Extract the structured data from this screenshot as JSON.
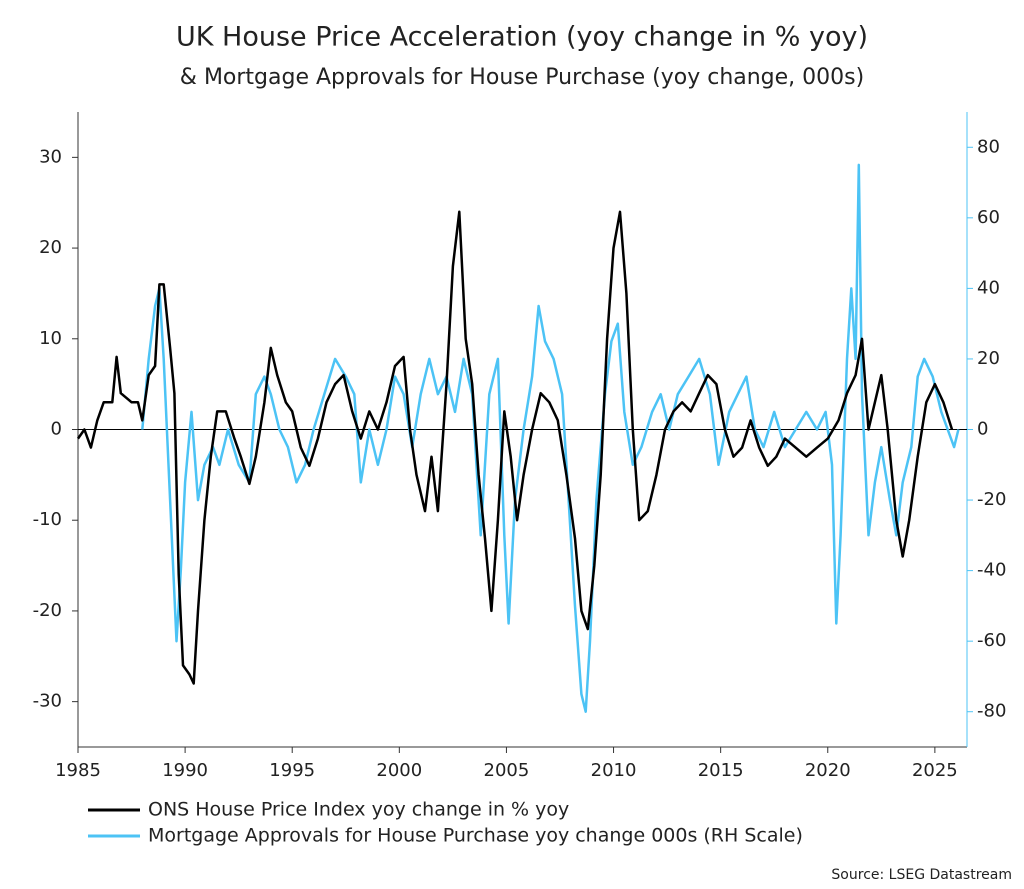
{
  "chart_data": {
    "type": "line",
    "title": "UK House Price Acceleration (yoy change in % yoy)",
    "subtitle": "& Mortgage Approvals for House Purchase (yoy change, 000s)",
    "source": "Source: LSEG Datastream",
    "xlim": [
      1985,
      2026.5
    ],
    "xticks": [
      1985,
      1990,
      1995,
      2000,
      2005,
      2010,
      2015,
      2020,
      2025
    ],
    "ylim": [
      -35,
      35
    ],
    "yticks": [
      -30,
      -20,
      -10,
      0,
      10,
      20,
      30
    ],
    "y2lim": [
      -90,
      90
    ],
    "y2ticks": [
      -80,
      -60,
      -40,
      -20,
      0,
      20,
      40,
      60,
      80
    ],
    "y2color": "#4cc3f5",
    "series": [
      {
        "name": "ONS House Price Index yoy change in % yoy",
        "color": "#000000",
        "axis": "y",
        "x": [
          1985.0,
          1985.3,
          1985.6,
          1985.9,
          1986.2,
          1986.6,
          1986.8,
          1987.0,
          1987.5,
          1987.8,
          1988.0,
          1988.3,
          1988.6,
          1988.8,
          1989.0,
          1989.3,
          1989.5,
          1989.7,
          1989.9,
          1990.2,
          1990.4,
          1990.6,
          1990.9,
          1991.2,
          1991.5,
          1991.9,
          1992.3,
          1992.6,
          1993.0,
          1993.3,
          1993.7,
          1994.0,
          1994.3,
          1994.7,
          1995.0,
          1995.4,
          1995.8,
          1996.2,
          1996.6,
          1997.0,
          1997.4,
          1997.8,
          1998.2,
          1998.6,
          1999.0,
          1999.4,
          1999.8,
          2000.2,
          2000.5,
          2000.8,
          2001.2,
          2001.5,
          2001.8,
          2002.2,
          2002.5,
          2002.8,
          2003.1,
          2003.4,
          2003.7,
          2004.0,
          2004.3,
          2004.6,
          2004.9,
          2005.2,
          2005.5,
          2005.8,
          2006.2,
          2006.6,
          2007.0,
          2007.4,
          2007.8,
          2008.2,
          2008.5,
          2008.8,
          2009.1,
          2009.4,
          2009.7,
          2010.0,
          2010.3,
          2010.6,
          2010.9,
          2011.2,
          2011.6,
          2012.0,
          2012.4,
          2012.8,
          2013.2,
          2013.6,
          2014.0,
          2014.4,
          2014.8,
          2015.2,
          2015.6,
          2016.0,
          2016.4,
          2016.8,
          2017.2,
          2017.6,
          2018.0,
          2018.5,
          2019.0,
          2019.5,
          2020.0,
          2020.5,
          2020.9,
          2021.3,
          2021.6,
          2021.9,
          2022.2,
          2022.5,
          2022.8,
          2023.2,
          2023.5,
          2023.8,
          2024.2,
          2024.6,
          2025.0,
          2025.4,
          2025.8
        ],
        "values": [
          -1,
          0,
          -2,
          1,
          3,
          3,
          8,
          4,
          3,
          3,
          1,
          6,
          7,
          16,
          16,
          9,
          4,
          -16,
          -26,
          -27,
          -28,
          -20,
          -10,
          -3,
          2,
          2,
          -1,
          -3,
          -6,
          -3,
          3,
          9,
          6,
          3,
          2,
          -2,
          -4,
          -1,
          3,
          5,
          6,
          2,
          -1,
          2,
          0,
          3,
          7,
          8,
          0,
          -5,
          -9,
          -3,
          -9,
          5,
          18,
          24,
          10,
          5,
          -5,
          -12,
          -20,
          -10,
          2,
          -3,
          -10,
          -5,
          0,
          4,
          3,
          1,
          -5,
          -12,
          -20,
          -22,
          -15,
          -5,
          10,
          20,
          24,
          15,
          0,
          -10,
          -9,
          -5,
          0,
          2,
          3,
          2,
          4,
          6,
          5,
          0,
          -3,
          -2,
          1,
          -2,
          -4,
          -3,
          -1,
          -2,
          -3,
          -2,
          -1,
          1,
          4,
          6,
          10,
          0,
          3,
          6,
          0,
          -10,
          -14,
          -10,
          -3,
          3,
          5,
          3,
          0
        ]
      },
      {
        "name": "Mortgage Approvals for House Purchase yoy change 000s (RH Scale)",
        "color": "#4cc3f5",
        "axis": "y2",
        "x": [
          1988.0,
          1988.3,
          1988.6,
          1988.8,
          1989.0,
          1989.3,
          1989.6,
          1989.8,
          1990.0,
          1990.3,
          1990.6,
          1990.9,
          1991.3,
          1991.6,
          1992.0,
          1992.5,
          1993.0,
          1993.3,
          1993.7,
          1994.0,
          1994.4,
          1994.8,
          1995.2,
          1995.6,
          1996.0,
          1996.5,
          1997.0,
          1997.5,
          1997.9,
          1998.2,
          1998.6,
          1999.0,
          1999.4,
          1999.8,
          2000.2,
          2000.6,
          2001.0,
          2001.4,
          2001.8,
          2002.2,
          2002.6,
          2003.0,
          2003.4,
          2003.8,
          2004.2,
          2004.6,
          2004.9,
          2005.1,
          2005.4,
          2005.8,
          2006.2,
          2006.5,
          2006.8,
          2007.2,
          2007.6,
          2007.9,
          2008.2,
          2008.5,
          2008.7,
          2008.9,
          2009.2,
          2009.6,
          2009.9,
          2010.2,
          2010.5,
          2010.9,
          2011.3,
          2011.8,
          2012.2,
          2012.6,
          2013.0,
          2013.5,
          2014.0,
          2014.5,
          2014.9,
          2015.4,
          2015.8,
          2016.2,
          2016.6,
          2017.0,
          2017.5,
          2018.0,
          2018.5,
          2019.0,
          2019.5,
          2019.9,
          2020.2,
          2020.4,
          2020.6,
          2020.9,
          2021.1,
          2021.3,
          2021.45,
          2021.6,
          2021.9,
          2022.2,
          2022.5,
          2022.9,
          2023.2,
          2023.5,
          2023.9,
          2024.2,
          2024.5,
          2024.9,
          2025.3,
          2025.6,
          2025.9,
          2026.1
        ],
        "values": [
          0,
          20,
          35,
          40,
          20,
          -20,
          -60,
          -40,
          -15,
          5,
          -20,
          -10,
          -5,
          -10,
          0,
          -10,
          -15,
          10,
          15,
          10,
          0,
          -5,
          -15,
          -10,
          0,
          10,
          20,
          15,
          10,
          -15,
          0,
          -10,
          0,
          15,
          10,
          -5,
          10,
          20,
          10,
          15,
          5,
          20,
          10,
          -30,
          10,
          20,
          -30,
          -55,
          -20,
          0,
          15,
          35,
          25,
          20,
          10,
          -20,
          -50,
          -75,
          -80,
          -60,
          -20,
          10,
          25,
          30,
          5,
          -10,
          -5,
          5,
          10,
          0,
          10,
          15,
          20,
          10,
          -10,
          5,
          10,
          15,
          0,
          -5,
          5,
          -5,
          0,
          5,
          0,
          5,
          -10,
          -55,
          -30,
          20,
          40,
          20,
          75,
          10,
          -30,
          -15,
          -5,
          -20,
          -30,
          -15,
          -5,
          15,
          20,
          15,
          5,
          0,
          -5,
          0
        ]
      }
    ]
  }
}
